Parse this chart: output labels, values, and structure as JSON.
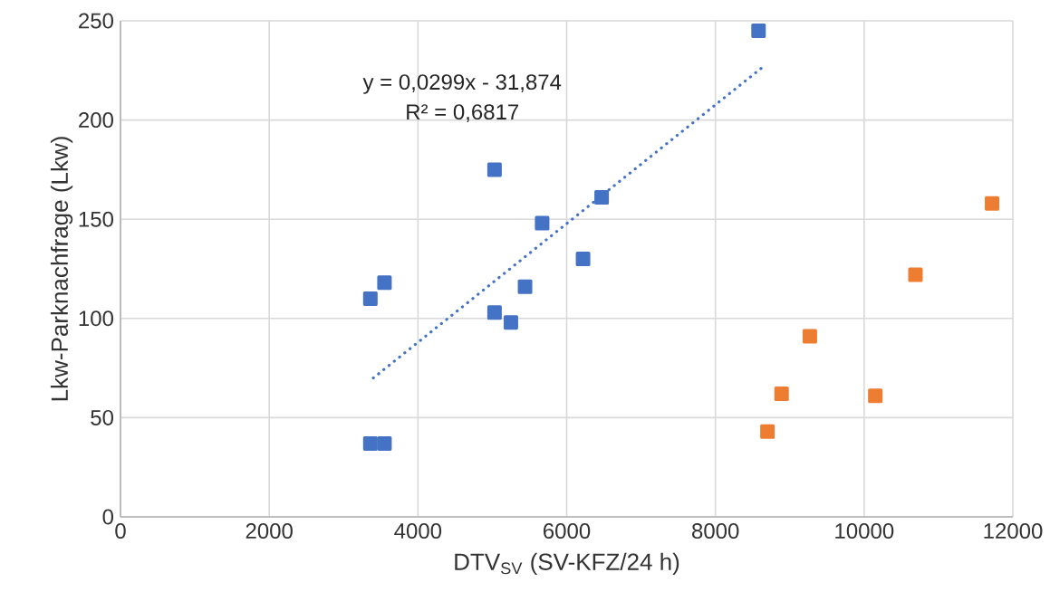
{
  "chart_data": {
    "type": "scatter",
    "xlabel": "DTV$_{SV}$ (SV-KFZ/24 h)",
    "ylabel": "Lkw-Parknachfrage (Lkw)",
    "annotations": [
      "y = 0,0299x - 31,874",
      "R² = 0,6817"
    ],
    "series": [
      {
        "color": "#4472c4",
        "marker": "square",
        "x": [
          3360,
          3550,
          3360,
          3550,
          5030,
          5030,
          5250,
          5440,
          5670,
          6220,
          6470,
          8580
        ],
        "values": [
          110,
          118,
          37,
          37,
          175,
          103,
          98,
          116,
          148,
          130,
          161,
          245
        ]
      },
      {
        "color": "#ed7d31",
        "marker": "square",
        "x": [
          8700,
          8890,
          9270,
          10150,
          10690,
          11720
        ],
        "values": [
          43,
          62,
          91,
          61,
          122,
          158
        ]
      },
      {
        "type": "line",
        "color": "#4472c4",
        "marker": "none",
        "line_style": "dotted",
        "x": [
          3400,
          8680
        ],
        "values": [
          70,
          228
        ]
      }
    ],
    "xlim": [
      0,
      12000
    ],
    "xticks": [
      0,
      2000,
      4000,
      6000,
      8000,
      10000,
      12000
    ],
    "ylim": [
      0,
      250
    ],
    "yticks": [
      0,
      50,
      100,
      150,
      200,
      250
    ],
    "grid": true
  }
}
